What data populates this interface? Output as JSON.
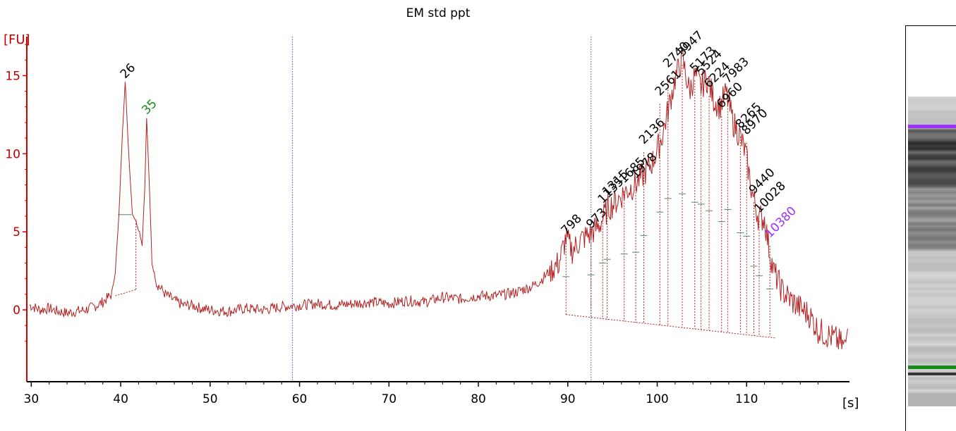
{
  "chart_data": {
    "type": "line",
    "title": "EM std ppt",
    "ylabel": "[FU]",
    "xlabel": "[s]",
    "xlim": [
      29.5,
      121.5
    ],
    "ylim": [
      -4.6,
      17.5
    ],
    "x_ticks": [
      30,
      40,
      50,
      60,
      70,
      80,
      90,
      100,
      110
    ],
    "y_ticks": [
      0,
      5,
      10,
      15
    ],
    "x_tick_labels": [
      "30",
      "40",
      "50",
      "60",
      "70",
      "80",
      "90",
      "100",
      "110"
    ],
    "y_tick_labels": [
      "0",
      "5",
      "10",
      "15"
    ],
    "colors": {
      "trace": "#b22222",
      "axis": "#cc0000",
      "marker_lower": "#1a8a1a",
      "marker_upper": "#9b30ff",
      "region_line": "#4f4fd0"
    },
    "region_lines_x": [
      59.2,
      92.6
    ],
    "lower_marker_fill": [
      [
        39.4,
        0.9
      ],
      [
        41.7,
        1.3
      ],
      [
        42.3,
        2.4
      ],
      [
        42.9,
        12.3
      ],
      [
        43.6,
        8.0
      ],
      [
        44.3,
        2.0
      ],
      [
        44.8,
        1.7
      ]
    ],
    "series": [
      {
        "values": [
          [
            29.8,
            0.3
          ],
          [
            31,
            0.0
          ],
          [
            32,
            0.1
          ],
          [
            33,
            -0.1
          ],
          [
            34,
            -0.2
          ],
          [
            35,
            -0.1
          ],
          [
            36,
            0.0
          ],
          [
            37,
            0.2
          ],
          [
            38,
            0.5
          ],
          [
            39,
            1.0
          ],
          [
            39.4,
            2.5
          ],
          [
            39.8,
            6.0
          ],
          [
            40.2,
            11.5
          ],
          [
            40.5,
            14.6
          ],
          [
            40.9,
            10.0
          ],
          [
            41.3,
            6.2
          ],
          [
            41.7,
            5.7
          ],
          [
            42.1,
            5.0
          ],
          [
            42.4,
            4.2
          ],
          [
            42.7,
            8.0
          ],
          [
            42.9,
            12.3
          ],
          [
            43.2,
            8.0
          ],
          [
            43.5,
            3.0
          ],
          [
            44,
            1.7
          ],
          [
            44.6,
            1.3
          ],
          [
            45,
            1.0
          ],
          [
            46,
            0.6
          ],
          [
            47,
            0.3
          ],
          [
            48,
            0.3
          ],
          [
            49,
            0.1
          ],
          [
            50,
            0.0
          ],
          [
            52,
            -0.1
          ],
          [
            54,
            0.1
          ],
          [
            56,
            0.0
          ],
          [
            58,
            0.2
          ],
          [
            60,
            0.3
          ],
          [
            62,
            0.4
          ],
          [
            64,
            0.3
          ],
          [
            66,
            0.4
          ],
          [
            68,
            0.5
          ],
          [
            70,
            0.4
          ],
          [
            72,
            0.6
          ],
          [
            74,
            0.5
          ],
          [
            76,
            0.8
          ],
          [
            78,
            0.7
          ],
          [
            80,
            0.9
          ],
          [
            82,
            0.9
          ],
          [
            84,
            1.1
          ],
          [
            85,
            1.3
          ],
          [
            86,
            1.5
          ],
          [
            87,
            1.9
          ],
          [
            88,
            2.5
          ],
          [
            89,
            3.0
          ],
          [
            89.8,
            4.6
          ],
          [
            90.5,
            3.8
          ],
          [
            91.5,
            4.5
          ],
          [
            92.6,
            4.9
          ],
          [
            93.5,
            5.4
          ],
          [
            94.5,
            6.5
          ],
          [
            95.5,
            7.0
          ],
          [
            96.5,
            7.6
          ],
          [
            97.5,
            8.0
          ],
          [
            98.5,
            8.7
          ],
          [
            99.5,
            9.5
          ],
          [
            100.5,
            11.0
          ],
          [
            101.3,
            13.0
          ],
          [
            102,
            14.8
          ],
          [
            102.8,
            16.1
          ],
          [
            103.6,
            14.0
          ],
          [
            104.2,
            15.0
          ],
          [
            104.9,
            14.3
          ],
          [
            105.6,
            14.8
          ],
          [
            106.3,
            13.5
          ],
          [
            107,
            13.0
          ],
          [
            107.7,
            13.9
          ],
          [
            108.5,
            12.0
          ],
          [
            109.2,
            11.2
          ],
          [
            109.9,
            10.0
          ],
          [
            110.6,
            7.5
          ],
          [
            111.3,
            6.0
          ],
          [
            112,
            5.8
          ],
          [
            112.5,
            4.0
          ],
          [
            113,
            2.5
          ],
          [
            114,
            1.2
          ],
          [
            115,
            0.6
          ],
          [
            116,
            0.1
          ],
          [
            117,
            -0.3
          ],
          [
            118,
            -1.3
          ],
          [
            119,
            -1.6
          ],
          [
            120,
            -1.9
          ],
          [
            121,
            -2.4
          ],
          [
            121.3,
            -1.2
          ]
        ]
      }
    ],
    "peaks": [
      {
        "label": "26",
        "x": 40.5,
        "y": 14.6,
        "color": "#000000"
      },
      {
        "label": "35",
        "x": 42.9,
        "y": 12.3,
        "color": "#1a8a1a"
      },
      {
        "label": "798",
        "x": 89.8,
        "y": 4.6,
        "color": "#000000"
      },
      {
        "label": "973",
        "x": 92.6,
        "y": 5.0,
        "color": "#000000"
      },
      {
        "label": "1135",
        "x": 93.9,
        "y": 6.6,
        "color": "#000000"
      },
      {
        "label": "1315",
        "x": 94.4,
        "y": 7.1,
        "color": "#000000"
      },
      {
        "label": "1685",
        "x": 96.3,
        "y": 7.9,
        "color": "#000000"
      },
      {
        "label": "1978",
        "x": 97.6,
        "y": 8.2,
        "color": "#000000"
      },
      {
        "label": "2136",
        "x": 98.5,
        "y": 10.4,
        "color": "#000000"
      },
      {
        "label": "2561",
        "x": 100.3,
        "y": 13.5,
        "color": "#000000"
      },
      {
        "label": "2740",
        "x": 101.2,
        "y": 15.3,
        "color": "#000000"
      },
      {
        "label": "3947",
        "x": 102.8,
        "y": 16.0,
        "color": "#000000"
      },
      {
        "label": "5173",
        "x": 104.2,
        "y": 15.0,
        "color": "#000000"
      },
      {
        "label": "5524",
        "x": 104.9,
        "y": 14.8,
        "color": "#000000"
      },
      {
        "label": "6224",
        "x": 105.8,
        "y": 14.0,
        "color": "#000000"
      },
      {
        "label": "6960",
        "x": 107.2,
        "y": 12.7,
        "color": "#000000"
      },
      {
        "label": "7983",
        "x": 107.9,
        "y": 14.3,
        "color": "#000000"
      },
      {
        "label": "8265",
        "x": 109.3,
        "y": 11.4,
        "color": "#000000"
      },
      {
        "label": "8970",
        "x": 110.0,
        "y": 11.0,
        "color": "#000000"
      },
      {
        "label": "9440",
        "x": 110.8,
        "y": 7.2,
        "color": "#000000"
      },
      {
        "label": "10028",
        "x": 111.4,
        "y": 6.0,
        "color": "#000000"
      },
      {
        "label": "10380",
        "x": 112.6,
        "y": 4.4,
        "color": "#9b30ff"
      }
    ]
  },
  "gel": {
    "upper_marker_color": "#9b30ff",
    "lower_marker_color": "#1a8a1a"
  }
}
